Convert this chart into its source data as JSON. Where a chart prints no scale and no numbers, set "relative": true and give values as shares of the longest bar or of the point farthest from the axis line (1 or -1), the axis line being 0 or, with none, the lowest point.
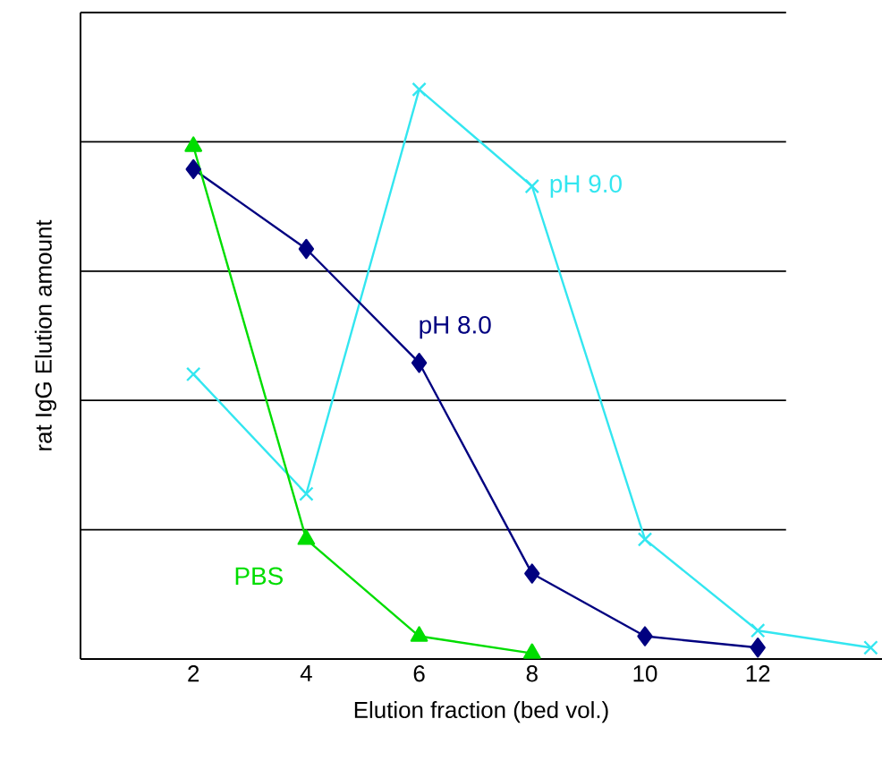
{
  "chart_data": {
    "type": "line",
    "xlabel": "Elution fraction (bed vol.)",
    "ylabel": "rat IgG Elution amount",
    "relative": true,
    "xlim": [
      0,
      14.2
    ],
    "xticks": [
      2,
      4,
      6,
      8,
      10,
      12
    ],
    "grid": "y",
    "tick_labels": "x",
    "series": [
      {
        "name": "pH 9.0",
        "color": "#33e6f0",
        "marker": "cross",
        "x": [
          2,
          4,
          6,
          8,
          10,
          12,
          14
        ],
        "values": [
          0.5,
          0.29,
          1,
          0.83,
          0.21,
          0.05,
          0.02
        ]
      },
      {
        "name": "pH 8.0",
        "color": "#000080",
        "marker": "diamond",
        "x": [
          2,
          4,
          6,
          8,
          10,
          12
        ],
        "values": [
          0.86,
          0.72,
          0.52,
          0.15,
          0.04,
          0.02
        ]
      },
      {
        "name": "PBS",
        "color": "#00dd00",
        "marker": "triangle",
        "x": [
          2,
          4,
          6,
          8
        ],
        "values": [
          0.9,
          0.21,
          0.04,
          0.01
        ]
      }
    ]
  }
}
